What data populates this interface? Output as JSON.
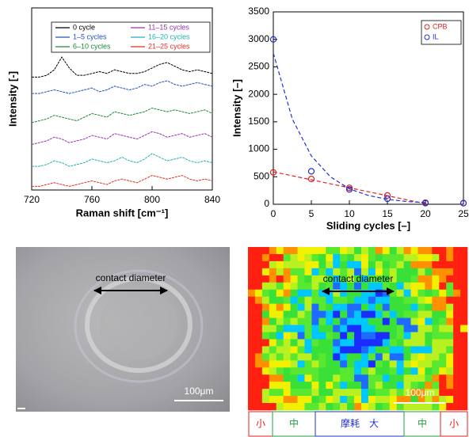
{
  "chart_data": [
    {
      "type": "line",
      "x_label": "Raman shift [cm⁻¹]",
      "y_label": "Intensity [-]",
      "x": [
        720,
        725,
        730,
        735,
        740,
        745,
        750,
        755,
        760,
        765,
        770,
        775,
        780,
        785,
        790,
        795,
        800,
        805,
        810,
        815,
        820,
        825,
        830,
        835,
        840
      ],
      "xlim": [
        720,
        840
      ],
      "xticks": [
        720,
        760,
        800,
        840
      ],
      "ylim": [
        0,
        10
      ],
      "legend": "upper center",
      "series": [
        {
          "name": "0 cycle",
          "color": "#000000",
          "values": [
            6.2,
            6.2,
            6.3,
            6.6,
            7.3,
            6.7,
            6.3,
            6.3,
            6.4,
            6.5,
            6.4,
            6.6,
            6.5,
            6.4,
            6.4,
            6.5,
            6.7,
            6.9,
            7.0,
            6.8,
            6.6,
            6.5,
            6.6,
            6.5,
            6.4
          ]
        },
        {
          "name": "1–5 cycles",
          "color": "#2050c0",
          "values": [
            5.3,
            5.3,
            5.4,
            5.5,
            5.4,
            5.3,
            5.4,
            5.5,
            5.6,
            5.4,
            5.5,
            5.7,
            5.6,
            5.5,
            5.6,
            5.8,
            5.7,
            5.9,
            6.0,
            5.8,
            5.7,
            5.8,
            5.9,
            5.8,
            5.7
          ]
        },
        {
          "name": "6–10 cycles",
          "color": "#1a8a3a",
          "values": [
            3.7,
            3.8,
            3.9,
            4.1,
            4.0,
            3.9,
            3.8,
            4.0,
            4.2,
            4.1,
            4.0,
            4.3,
            4.2,
            4.1,
            4.2,
            4.3,
            4.5,
            4.4,
            4.3,
            4.4,
            4.3,
            4.2,
            4.3,
            4.4,
            4.2
          ]
        },
        {
          "name": "11–15 cycles",
          "color": "#9a30b0",
          "values": [
            2.5,
            2.6,
            2.7,
            2.9,
            2.8,
            2.6,
            2.7,
            2.8,
            3.0,
            2.9,
            2.8,
            3.1,
            3.0,
            2.9,
            2.8,
            3.0,
            3.2,
            3.1,
            2.9,
            3.0,
            3.1,
            2.9,
            3.0,
            3.1,
            2.9
          ]
        },
        {
          "name": "16–20 cycles",
          "color": "#20b0b0",
          "values": [
            1.3,
            1.3,
            1.4,
            1.6,
            1.5,
            1.3,
            1.4,
            1.5,
            1.7,
            1.6,
            1.5,
            1.6,
            1.8,
            1.6,
            1.5,
            1.7,
            2.0,
            1.8,
            1.6,
            1.7,
            1.8,
            1.6,
            1.5,
            1.6,
            1.5
          ]
        },
        {
          "name": "21–25 cycles",
          "color": "#e03020",
          "values": [
            0.2,
            0.2,
            0.3,
            0.4,
            0.3,
            0.2,
            0.3,
            0.4,
            0.5,
            0.4,
            0.3,
            0.5,
            0.6,
            0.5,
            0.4,
            0.6,
            0.8,
            0.7,
            0.6,
            0.7,
            0.8,
            0.6,
            0.5,
            0.6,
            0.5
          ]
        }
      ]
    },
    {
      "type": "scatter",
      "x_label": "Sliding cycles [–]",
      "y_label": "Intensity [–]",
      "x": [
        0,
        5,
        10,
        15,
        20,
        25
      ],
      "xlim": [
        0,
        25
      ],
      "xticks": [
        0,
        5,
        10,
        15,
        20,
        25
      ],
      "ylim": [
        0,
        3500
      ],
      "yticks": [
        0,
        500,
        1000,
        1500,
        2000,
        2500,
        3000,
        3500
      ],
      "legend": "upper right",
      "series": [
        {
          "name": "CPB",
          "color": "#e02020",
          "values": [
            580,
            460,
            300,
            160,
            30,
            20
          ],
          "fit": {
            "x": [
              0,
              20
            ],
            "values": [
              590,
              10
            ]
          }
        },
        {
          "name": "IL",
          "color": "#2030d0",
          "values": [
            3000,
            600,
            270,
            100,
            20,
            20
          ],
          "fit": {
            "x": [
              0,
              2.5,
              5,
              7.5,
              10,
              12.5,
              15,
              17.5,
              20
            ],
            "values": [
              2750,
              1550,
              880,
              500,
              280,
              160,
              90,
              50,
              30
            ]
          }
        }
      ]
    }
  ],
  "images": [
    {
      "annotation": "contact diameter",
      "scale": "100μm"
    },
    {
      "annotation": "contact diameter",
      "scale": "100μm"
    }
  ],
  "wear_scale": [
    "小",
    "中",
    "摩耗　大",
    "中",
    "小"
  ]
}
